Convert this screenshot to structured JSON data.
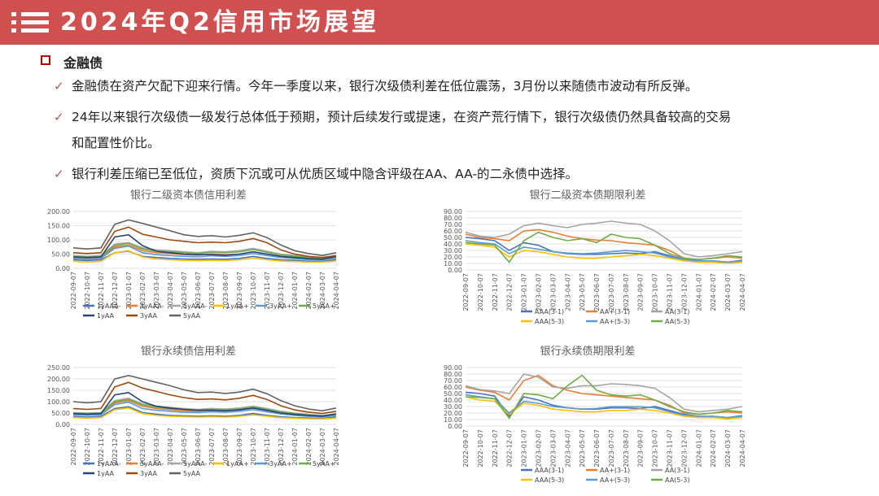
{
  "header": {
    "title": "2024年Q2信用市场展望"
  },
  "section": {
    "title": "金融债"
  },
  "bullets": [
    "金融债在资产欠配下迎来行情。今年一季度以来，银行次级债利差在低位震荡，3月份以来随债市波动有所反弹。",
    "24年以来银行次级债一级发行总体低于预期，预计后续发行或提速，在资产荒行情下，银行次级债仍然具备较高的交易",
    "和配置性价比。",
    "银行利差压缩已至低位，资质下沉或可从优质区域中隐含评级在AA、AA-的二永债中选择。"
  ],
  "colors": {
    "header_bg": "#d0504f",
    "1yAAA-": "#4472c4",
    "3yAAA-": "#ed7d31",
    "5yAAA-": "#a5a5a5",
    "1yAA+": "#ffc000",
    "3yAA+": "#5b9bd5",
    "5yAA+": "#70ad47",
    "1yAA": "#264478",
    "3yAA": "#9e480e",
    "5yAA": "#636363"
  },
  "chart_data": [
    {
      "type": "line",
      "title": "银行二级资本债信用利差",
      "ylim": [
        0,
        200
      ],
      "yticks": [
        "0.00",
        "50.00",
        "100.00",
        "150.00",
        "200.00"
      ],
      "x": [
        "2022-09-07",
        "2022-10-07",
        "2022-11-07",
        "2022-12-07",
        "2023-01-07",
        "2023-02-07",
        "2023-03-07",
        "2023-04-07",
        "2023-05-07",
        "2023-06-07",
        "2023-07-07",
        "2023-08-07",
        "2023-09-07",
        "2023-10-07",
        "2023-11-07",
        "2023-12-07",
        "2024-01-07",
        "2024-02-07",
        "2024-03-07",
        "2024-04-07"
      ],
      "series": [
        {
          "name": "1yAAA-",
          "color": "#4472c4",
          "values": [
            30,
            27,
            30,
            55,
            60,
            42,
            38,
            35,
            33,
            32,
            33,
            32,
            35,
            42,
            35,
            30,
            28,
            25,
            25,
            30
          ]
        },
        {
          "name": "3yAAA-",
          "color": "#ed7d31",
          "values": [
            38,
            35,
            38,
            75,
            82,
            62,
            55,
            52,
            48,
            46,
            50,
            48,
            50,
            58,
            50,
            42,
            38,
            34,
            32,
            38
          ]
        },
        {
          "name": "5yAAA-",
          "color": "#a5a5a5",
          "values": [
            45,
            42,
            45,
            85,
            90,
            72,
            65,
            62,
            58,
            55,
            60,
            58,
            62,
            70,
            60,
            50,
            45,
            40,
            38,
            42
          ]
        },
        {
          "name": "1yAA+",
          "color": "#ffc000",
          "values": [
            25,
            22,
            25,
            55,
            62,
            40,
            33,
            30,
            28,
            27,
            28,
            27,
            30,
            36,
            30,
            26,
            24,
            22,
            22,
            26
          ]
        },
        {
          "name": "3yAA+",
          "color": "#5b9bd5",
          "values": [
            35,
            32,
            35,
            70,
            78,
            55,
            48,
            45,
            42,
            40,
            44,
            42,
            45,
            52,
            45,
            38,
            34,
            30,
            30,
            35
          ]
        },
        {
          "name": "5yAA+",
          "color": "#70ad47",
          "values": [
            42,
            40,
            42,
            80,
            88,
            68,
            60,
            58,
            55,
            52,
            56,
            55,
            58,
            66,
            56,
            47,
            42,
            38,
            36,
            40
          ]
        },
        {
          "name": "1yAA",
          "color": "#264478",
          "values": [
            40,
            38,
            40,
            110,
            118,
            80,
            60,
            55,
            50,
            48,
            48,
            46,
            50,
            58,
            50,
            42,
            38,
            34,
            32,
            42
          ]
        },
        {
          "name": "3yAA",
          "color": "#9e480e",
          "values": [
            55,
            52,
            55,
            130,
            145,
            120,
            110,
            100,
            95,
            90,
            92,
            90,
            95,
            105,
            90,
            65,
            50,
            42,
            38,
            45
          ]
        },
        {
          "name": "5yAA",
          "color": "#636363",
          "values": [
            72,
            68,
            72,
            155,
            170,
            158,
            145,
            132,
            118,
            112,
            115,
            110,
            116,
            125,
            108,
            82,
            62,
            52,
            45,
            55
          ]
        }
      ]
    },
    {
      "type": "line",
      "title": "银行二级资本债期限利差",
      "ylim": [
        0,
        90
      ],
      "yticks": [
        "0.00",
        "10.00",
        "20.00",
        "30.00",
        "40.00",
        "50.00",
        "60.00",
        "70.00",
        "80.00",
        "90.00"
      ],
      "x": [
        "2022-09-07",
        "2022-10-07",
        "2022-11-07",
        "2022-12-07",
        "2023-01-07",
        "2023-02-07",
        "2023-03-07",
        "2023-04-07",
        "2023-05-07",
        "2023-06-07",
        "2023-07-07",
        "2023-08-07",
        "2023-09-07",
        "2023-10-07",
        "2023-11-07",
        "2023-12-07",
        "2024-01-07",
        "2024-02-07",
        "2024-03-07",
        "2024-04-07"
      ],
      "series": [
        {
          "name": "AAA(3-1)",
          "color": "#4472c4",
          "values": [
            50,
            48,
            45,
            30,
            42,
            38,
            28,
            25,
            24,
            24,
            25,
            26,
            25,
            28,
            22,
            16,
            14,
            14,
            12,
            15
          ]
        },
        {
          "name": "AA+(3-1)",
          "color": "#ed7d31",
          "values": [
            55,
            50,
            48,
            45,
            60,
            62,
            58,
            52,
            48,
            46,
            45,
            42,
            40,
            38,
            30,
            18,
            16,
            18,
            20,
            18
          ]
        },
        {
          "name": "AA(3-1)",
          "color": "#a5a5a5",
          "values": [
            58,
            52,
            50,
            55,
            68,
            72,
            68,
            65,
            70,
            72,
            75,
            72,
            70,
            60,
            45,
            25,
            20,
            22,
            25,
            28
          ]
        },
        {
          "name": "AAA(5-3)",
          "color": "#ffc000",
          "values": [
            40,
            38,
            35,
            20,
            30,
            28,
            24,
            20,
            18,
            18,
            20,
            22,
            24,
            22,
            18,
            14,
            12,
            12,
            10,
            12
          ]
        },
        {
          "name": "AA+(5-3)",
          "color": "#5b9bd5",
          "values": [
            45,
            42,
            40,
            25,
            35,
            32,
            28,
            26,
            25,
            26,
            28,
            30,
            28,
            26,
            20,
            16,
            14,
            14,
            12,
            14
          ]
        },
        {
          "name": "AA(5-3)",
          "color": "#70ad47",
          "values": [
            42,
            40,
            38,
            12,
            45,
            58,
            50,
            45,
            48,
            42,
            55,
            50,
            48,
            38,
            25,
            18,
            16,
            18,
            22,
            20
          ]
        }
      ]
    },
    {
      "type": "line",
      "title": "银行永续债信用利差",
      "ylim": [
        0,
        250
      ],
      "yticks": [
        "0.00",
        "50.00",
        "100.00",
        "150.00",
        "200.00",
        "250.00"
      ],
      "x": [
        "2022-09-07",
        "2022-10-07",
        "2022-11-07",
        "2022-12-07",
        "2023-01-07",
        "2023-02-07",
        "2023-03-07",
        "2023-04-07",
        "2023-05-07",
        "2023-06-07",
        "2023-07-07",
        "2023-08-07",
        "2023-09-07",
        "2023-10-07",
        "2023-11-07",
        "2023-12-07",
        "2024-01-07",
        "2024-02-07",
        "2024-03-07",
        "2024-04-07"
      ],
      "series": [
        {
          "name": "1yAAA-",
          "color": "#4472c4",
          "values": [
            35,
            32,
            35,
            70,
            78,
            52,
            45,
            40,
            38,
            36,
            38,
            36,
            40,
            48,
            40,
            34,
            30,
            28,
            26,
            32
          ]
        },
        {
          "name": "3yAAA-",
          "color": "#ed7d31",
          "values": [
            45,
            42,
            45,
            95,
            105,
            80,
            70,
            65,
            60,
            58,
            62,
            60,
            64,
            72,
            62,
            50,
            44,
            38,
            36,
            42
          ]
        },
        {
          "name": "5yAAA-",
          "color": "#a5a5a5",
          "values": [
            52,
            50,
            52,
            105,
            115,
            90,
            80,
            75,
            70,
            66,
            70,
            68,
            72,
            80,
            70,
            58,
            50,
            44,
            40,
            46
          ]
        },
        {
          "name": "1yAA+",
          "color": "#ffc000",
          "values": [
            30,
            28,
            30,
            65,
            72,
            48,
            40,
            36,
            34,
            32,
            34,
            32,
            36,
            42,
            36,
            30,
            27,
            25,
            24,
            28
          ]
        },
        {
          "name": "3yAA+",
          "color": "#5b9bd5",
          "values": [
            42,
            40,
            42,
            88,
            98,
            70,
            62,
            58,
            54,
            52,
            56,
            54,
            58,
            65,
            56,
            46,
            40,
            35,
            33,
            38
          ]
        },
        {
          "name": "5yAA+",
          "color": "#70ad47",
          "values": [
            50,
            48,
            50,
            100,
            110,
            86,
            76,
            70,
            66,
            62,
            66,
            64,
            68,
            76,
            66,
            55,
            48,
            42,
            38,
            44
          ]
        },
        {
          "name": "1yAA",
          "color": "#264478",
          "values": [
            48,
            45,
            48,
            130,
            140,
            100,
            80,
            72,
            66,
            62,
            62,
            60,
            64,
            72,
            62,
            50,
            44,
            40,
            36,
            46
          ]
        },
        {
          "name": "3yAA",
          "color": "#9e480e",
          "values": [
            70,
            66,
            70,
            165,
            185,
            160,
            145,
            130,
            118,
            110,
            112,
            108,
            115,
            128,
            110,
            82,
            64,
            54,
            48,
            58
          ]
        },
        {
          "name": "5yAA",
          "color": "#636363",
          "values": [
            100,
            95,
            100,
            200,
            215,
            200,
            185,
            170,
            152,
            140,
            142,
            136,
            142,
            155,
            135,
            105,
            82,
            68,
            60,
            72
          ]
        }
      ]
    },
    {
      "type": "line",
      "title": "银行永续债期限利差",
      "ylim": [
        0,
        90
      ],
      "yticks": [
        "0.00",
        "10.00",
        "20.00",
        "30.00",
        "40.00",
        "50.00",
        "60.00",
        "70.00",
        "80.00",
        "90.00"
      ],
      "x": [
        "2022-09-07",
        "2022-10-07",
        "2022-11-07",
        "2022-12-07",
        "2023-01-07",
        "2023-02-07",
        "2023-03-07",
        "2023-04-07",
        "2023-05-07",
        "2023-06-07",
        "2023-07-07",
        "2023-08-07",
        "2023-09-07",
        "2023-10-07",
        "2023-11-07",
        "2023-12-07",
        "2024-01-07",
        "2024-02-07",
        "2024-03-07",
        "2024-04-07"
      ],
      "series": [
        {
          "name": "AAA(3-1)",
          "color": "#4472c4",
          "values": [
            52,
            50,
            46,
            15,
            45,
            40,
            32,
            28,
            26,
            26,
            28,
            28,
            27,
            30,
            24,
            18,
            15,
            15,
            13,
            16
          ]
        },
        {
          "name": "AA+(3-1)",
          "color": "#ed7d31",
          "values": [
            60,
            55,
            52,
            40,
            70,
            78,
            62,
            55,
            50,
            48,
            46,
            44,
            42,
            40,
            32,
            20,
            18,
            20,
            22,
            20
          ]
        },
        {
          "name": "AA(3-1)",
          "color": "#a5a5a5",
          "values": [
            62,
            56,
            54,
            50,
            80,
            75,
            60,
            58,
            62,
            62,
            65,
            64,
            62,
            58,
            44,
            26,
            22,
            24,
            26,
            30
          ]
        },
        {
          "name": "AAA(5-3)",
          "color": "#ffc000",
          "values": [
            45,
            40,
            38,
            18,
            35,
            32,
            26,
            24,
            22,
            22,
            24,
            24,
            26,
            24,
            20,
            15,
            13,
            13,
            11,
            13
          ]
        },
        {
          "name": "AA+(5-3)",
          "color": "#5b9bd5",
          "values": [
            48,
            45,
            42,
            20,
            38,
            35,
            30,
            28,
            26,
            27,
            30,
            30,
            30,
            28,
            22,
            17,
            15,
            15,
            13,
            15
          ]
        },
        {
          "name": "AA(5-3)",
          "color": "#70ad47",
          "values": [
            45,
            44,
            42,
            12,
            50,
            48,
            42,
            62,
            78,
            55,
            48,
            46,
            48,
            40,
            30,
            22,
            18,
            20,
            24,
            22
          ]
        }
      ]
    }
  ]
}
